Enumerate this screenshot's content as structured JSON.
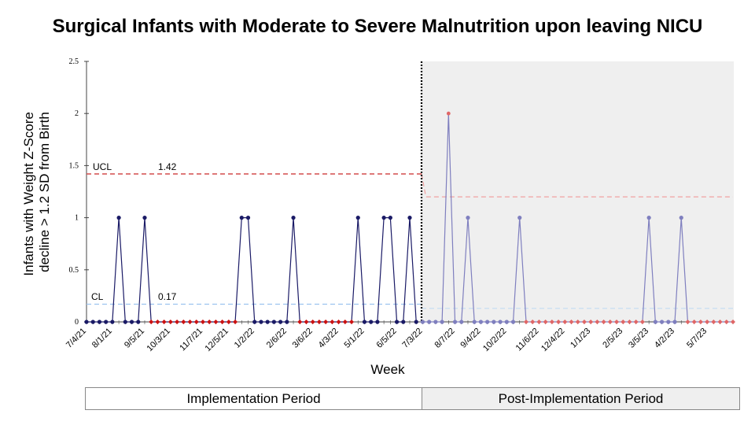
{
  "chart_data": {
    "type": "line",
    "title": "Surgical Infants with Moderate to Severe Malnutrition upon leaving NICU",
    "xlabel": "Week",
    "ylabel_lines": [
      "Infants with Weight Z-Score",
      "decline > 1.2 SD from Birth"
    ],
    "ylim": [
      0,
      2.5
    ],
    "yticks": [
      "0",
      "0.5",
      "1",
      "1.5",
      "2",
      "2.5"
    ],
    "grid": false,
    "x_start": "7/4/21",
    "x_tick_labels": [
      "7/4/21",
      "8/1/21",
      "9/5/21",
      "10/3/21",
      "11/7/21",
      "12/5/21",
      "1/2/22",
      "2/6/22",
      "3/6/22",
      "4/3/22",
      "5/1/22",
      "6/5/22",
      "7/3/22",
      "8/7/22",
      "9/4/22",
      "10/2/22",
      "11/6/22",
      "12/4/22",
      "1/1/23",
      "2/5/23",
      "3/5/23",
      "4/2/23",
      "5/7/23"
    ],
    "series": [
      {
        "period": "Implementation Period",
        "color": "#1a1a66",
        "run_color": "#cc1111",
        "values": [
          0,
          0,
          0,
          0,
          0,
          1,
          0,
          0,
          0,
          1,
          0,
          0,
          0,
          0,
          0,
          0,
          0,
          0,
          0,
          0,
          0,
          0,
          0,
          0,
          1,
          1,
          0,
          0,
          0,
          0,
          0,
          0,
          1,
          0,
          0,
          0,
          0,
          0,
          0,
          0,
          0,
          0,
          1,
          0,
          0,
          0,
          1,
          1,
          0,
          0,
          1,
          0
        ]
      },
      {
        "period": "Post-Implementation Period",
        "color": "#7f7fbf",
        "run_color": "#e06666",
        "values": [
          0,
          0,
          0,
          0,
          2,
          0,
          0,
          1,
          0,
          0,
          0,
          0,
          0,
          0,
          0,
          1,
          0,
          0,
          0,
          0,
          0,
          0,
          0,
          0,
          0,
          0,
          0,
          0,
          0,
          0,
          0,
          0,
          0,
          0,
          0,
          1,
          0,
          0,
          0,
          0,
          1,
          0,
          0,
          0,
          0,
          0,
          0,
          0,
          0
        ]
      }
    ],
    "control_limits": [
      {
        "name": "UCL",
        "period": "Implementation Period",
        "value": 1.42,
        "label": "1.42",
        "color": "#d44c4c"
      },
      {
        "name": "CL",
        "period": "Implementation Period",
        "value": 0.17,
        "label": "0.17",
        "color": "#9cc3ef"
      },
      {
        "name": "UCL",
        "period": "Post-Implementation Period",
        "value": 1.2,
        "color": "#f0a0a0"
      },
      {
        "name": "CL",
        "period": "Post-Implementation Period",
        "value": 0.13,
        "color": "#c4dcf2"
      }
    ],
    "phase_divider_at": "7/3/22",
    "phase_labels": [
      "Implementation Period",
      "Post-Implementation Period"
    ],
    "post_period_shading": "#efefef"
  }
}
